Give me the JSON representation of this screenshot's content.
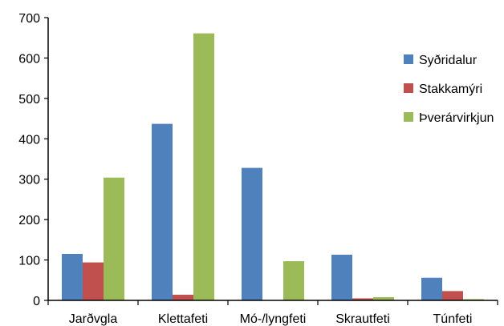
{
  "chart_data": {
    "type": "bar",
    "title": "",
    "xlabel": "",
    "ylabel": "",
    "ylim": [
      0,
      700
    ],
    "yticks": [
      "0",
      "100",
      "200",
      "300",
      "400",
      "500",
      "600",
      "700"
    ],
    "categories": [
      "Jarðvgla",
      "Klettafeti",
      "Mó-/lyngfeti",
      "Skrautfeti",
      "Túnfeti"
    ],
    "series": [
      {
        "name": "Syðridalur",
        "color": "#4F81BD",
        "values": [
          115,
          437,
          328,
          113,
          56
        ]
      },
      {
        "name": "Stakkamýri",
        "color": "#C0504D",
        "values": [
          94,
          14,
          0,
          5,
          23
        ]
      },
      {
        "name": "Þverárvirkjun",
        "color": "#9BBB59",
        "values": [
          304,
          661,
          97,
          8,
          3
        ]
      }
    ],
    "legend_position": "right",
    "grid": false
  }
}
